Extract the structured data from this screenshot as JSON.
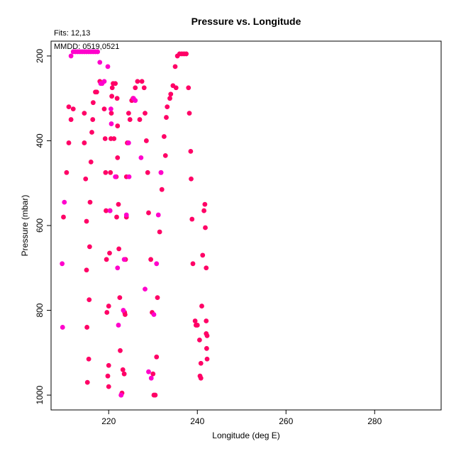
{
  "chart_data": {
    "type": "scatter",
    "title": "Pressure vs. Longitude",
    "xlabel": "Longitude (deg E)",
    "ylabel": "Pressure (mbar)",
    "fits_label": "Fits: 12,13",
    "mmdd_label": "MMDD: 0519,0521",
    "xlim": [
      207,
      295
    ],
    "ylim": [
      1035,
      165
    ],
    "y_inverted": true,
    "xticks": [
      220,
      240,
      260,
      280
    ],
    "yticks": [
      200,
      400,
      600,
      800,
      1000
    ],
    "grid": false,
    "legend": "none",
    "colors": {
      "series_a": "#ff0066",
      "series_b": "#ff00cc"
    },
    "series": [
      {
        "color": "#ff0066",
        "points": [
          [
            209.8,
            580
          ],
          [
            210.5,
            475
          ],
          [
            211.0,
            320
          ],
          [
            211.0,
            405
          ],
          [
            211.5,
            350
          ],
          [
            212.0,
            325
          ],
          [
            214.5,
            335
          ],
          [
            214.5,
            405
          ],
          [
            214.8,
            490
          ],
          [
            215.0,
            590
          ],
          [
            215.0,
            705
          ],
          [
            215.1,
            840
          ],
          [
            215.2,
            970
          ],
          [
            215.5,
            915
          ],
          [
            215.6,
            775
          ],
          [
            215.7,
            650
          ],
          [
            215.8,
            545
          ],
          [
            216.0,
            450
          ],
          [
            216.2,
            380
          ],
          [
            216.4,
            350
          ],
          [
            216.5,
            310
          ],
          [
            217.0,
            285
          ],
          [
            217.3,
            285
          ],
          [
            218.0,
            260
          ],
          [
            218.5,
            265
          ],
          [
            219.0,
            325
          ],
          [
            219.2,
            395
          ],
          [
            219.3,
            475
          ],
          [
            219.4,
            565
          ],
          [
            219.5,
            680
          ],
          [
            219.6,
            805
          ],
          [
            219.8,
            955
          ],
          [
            220.0,
            980
          ],
          [
            220.0,
            930
          ],
          [
            220.0,
            790
          ],
          [
            220.2,
            665
          ],
          [
            220.3,
            565
          ],
          [
            220.4,
            475
          ],
          [
            220.5,
            395
          ],
          [
            220.6,
            335
          ],
          [
            220.7,
            295
          ],
          [
            220.8,
            275
          ],
          [
            221.0,
            265
          ],
          [
            221.2,
            395
          ],
          [
            221.5,
            265
          ],
          [
            221.7,
            485
          ],
          [
            221.8,
            580
          ],
          [
            221.9,
            300
          ],
          [
            222.0,
            365
          ],
          [
            222.0,
            440
          ],
          [
            222.2,
            550
          ],
          [
            222.3,
            655
          ],
          [
            222.5,
            770
          ],
          [
            222.6,
            895
          ],
          [
            222.8,
            1000
          ],
          [
            223.0,
            995
          ],
          [
            223.2,
            940
          ],
          [
            223.5,
            950
          ],
          [
            223.6,
            805
          ],
          [
            223.7,
            810
          ],
          [
            223.8,
            680
          ],
          [
            224.0,
            580
          ],
          [
            224.0,
            485
          ],
          [
            224.2,
            405
          ],
          [
            224.5,
            335
          ],
          [
            224.8,
            350
          ],
          [
            225.2,
            305
          ],
          [
            225.5,
            300
          ],
          [
            226.0,
            275
          ],
          [
            226.5,
            260
          ],
          [
            227.0,
            350
          ],
          [
            227.5,
            260
          ],
          [
            228.0,
            275
          ],
          [
            228.2,
            335
          ],
          [
            228.5,
            400
          ],
          [
            228.8,
            475
          ],
          [
            229.0,
            570
          ],
          [
            229.5,
            680
          ],
          [
            229.8,
            805
          ],
          [
            230.0,
            950
          ],
          [
            230.2,
            1000
          ],
          [
            230.5,
            1000
          ],
          [
            230.8,
            910
          ],
          [
            231.0,
            770
          ],
          [
            231.5,
            615
          ],
          [
            231.8,
            475
          ],
          [
            232.0,
            515
          ],
          [
            232.5,
            390
          ],
          [
            232.8,
            435
          ],
          [
            233.0,
            345
          ],
          [
            233.2,
            320
          ],
          [
            233.8,
            300
          ],
          [
            234.0,
            290
          ],
          [
            234.5,
            270
          ],
          [
            235.0,
            225
          ],
          [
            235.2,
            275
          ],
          [
            235.5,
            200
          ],
          [
            236.0,
            195
          ],
          [
            236.5,
            195
          ],
          [
            237.0,
            195
          ],
          [
            237.5,
            195
          ],
          [
            238.0,
            275
          ],
          [
            238.2,
            335
          ],
          [
            238.5,
            425
          ],
          [
            238.6,
            490
          ],
          [
            238.8,
            585
          ],
          [
            239.0,
            690
          ],
          [
            239.5,
            825
          ],
          [
            239.7,
            835
          ],
          [
            240.0,
            835
          ],
          [
            240.5,
            870
          ],
          [
            240.6,
            955
          ],
          [
            240.8,
            925
          ],
          [
            241.0,
            790
          ],
          [
            241.2,
            670
          ],
          [
            241.5,
            565
          ],
          [
            241.7,
            550
          ],
          [
            241.8,
            605
          ],
          [
            242.0,
            700
          ],
          [
            242.0,
            825
          ],
          [
            242.0,
            855
          ],
          [
            242.1,
            890
          ],
          [
            242.2,
            915
          ],
          [
            242.2,
            860
          ],
          [
            240.8,
            960
          ]
        ]
      },
      {
        "color": "#ff00cc",
        "points": [
          [
            211.5,
            200
          ],
          [
            212.0,
            190
          ],
          [
            212.5,
            190
          ],
          [
            213.0,
            190
          ],
          [
            213.5,
            190
          ],
          [
            214.0,
            190
          ],
          [
            214.5,
            190
          ],
          [
            215.0,
            190
          ],
          [
            215.5,
            190
          ],
          [
            216.0,
            190
          ],
          [
            216.5,
            190
          ],
          [
            217.0,
            190
          ],
          [
            217.5,
            190
          ],
          [
            218.0,
            215
          ],
          [
            218.2,
            265
          ],
          [
            218.5,
            265
          ],
          [
            219.0,
            260
          ],
          [
            219.8,
            225
          ],
          [
            220.5,
            325
          ],
          [
            220.6,
            360
          ],
          [
            209.5,
            690
          ],
          [
            209.6,
            840
          ],
          [
            210.0,
            545
          ],
          [
            221.5,
            485
          ],
          [
            222.0,
            700
          ],
          [
            222.2,
            835
          ],
          [
            222.8,
            1000
          ],
          [
            223.5,
            680
          ],
          [
            224.0,
            575
          ],
          [
            224.6,
            485
          ],
          [
            225.6,
            300
          ],
          [
            227.3,
            440
          ],
          [
            228.2,
            750
          ],
          [
            229.0,
            945
          ],
          [
            229.6,
            960
          ],
          [
            230.2,
            810
          ],
          [
            230.8,
            690
          ],
          [
            231.2,
            575
          ],
          [
            231.8,
            475
          ],
          [
            220.3,
            565
          ],
          [
            224.5,
            405
          ],
          [
            226.0,
            305
          ],
          [
            223.3,
            800
          ]
        ]
      }
    ]
  }
}
